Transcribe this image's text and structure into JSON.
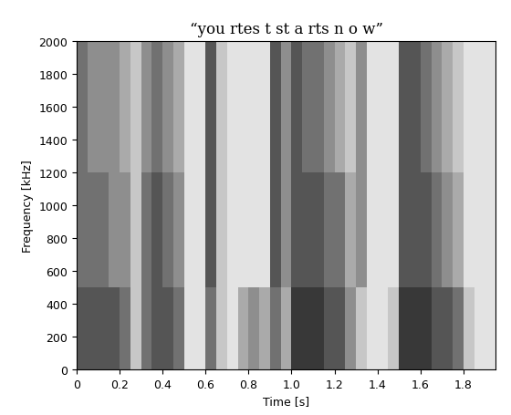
{
  "chart_data": {
    "type": "heatmap",
    "title": "“you rtes t st a rts n o w”",
    "x_label": "Time [s]",
    "y_label": "Frequency [kHz]",
    "color": "gray_r",
    "color_range": [
      0,
      9
    ],
    "x_edges": [
      0,
      0.05,
      0.1,
      0.15,
      0.2,
      0.25,
      0.3,
      0.35,
      0.4,
      0.45,
      0.5,
      0.55,
      0.6,
      0.65,
      0.7,
      0.75,
      0.8,
      0.85,
      0.9,
      0.95,
      1.0,
      1.05,
      1.1,
      1.15,
      1.2,
      1.25,
      1.3,
      1.35,
      1.4,
      1.45,
      1.5,
      1.55,
      1.6,
      1.65,
      1.7,
      1.75,
      1.8,
      1.85,
      1.9,
      1.95
    ],
    "y_edges": [
      0,
      100,
      200,
      300,
      400,
      500,
      600,
      700,
      800,
      900,
      1000,
      1100,
      1200,
      1300,
      1400,
      1500,
      1600,
      1700,
      1800,
      1900,
      2000
    ],
    "cells": [
      [
        6,
        6,
        6,
        6,
        5,
        2,
        5,
        6,
        6,
        5,
        1,
        1,
        5,
        2,
        1,
        3,
        4,
        3,
        5,
        3,
        7,
        7,
        7,
        6,
        6,
        4,
        2,
        1,
        1,
        2,
        7,
        7,
        7,
        6,
        6,
        5,
        2,
        1,
        1
      ],
      [
        6,
        6,
        6,
        6,
        5,
        2,
        5,
        6,
        6,
        5,
        1,
        1,
        5,
        2,
        1,
        3,
        4,
        3,
        5,
        3,
        7,
        7,
        7,
        6,
        6,
        4,
        2,
        1,
        1,
        2,
        7,
        7,
        7,
        6,
        6,
        5,
        2,
        1,
        1
      ],
      [
        6,
        6,
        6,
        6,
        5,
        2,
        5,
        6,
        6,
        5,
        1,
        1,
        5,
        2,
        1,
        3,
        4,
        3,
        5,
        3,
        7,
        7,
        7,
        6,
        6,
        4,
        2,
        1,
        1,
        2,
        7,
        7,
        7,
        6,
        6,
        5,
        2,
        1,
        1
      ],
      [
        6,
        6,
        6,
        6,
        5,
        2,
        5,
        6,
        6,
        5,
        1,
        1,
        5,
        2,
        1,
        3,
        4,
        3,
        5,
        3,
        7,
        7,
        7,
        6,
        6,
        4,
        2,
        1,
        1,
        2,
        7,
        7,
        7,
        6,
        6,
        5,
        2,
        1,
        1
      ],
      [
        6,
        6,
        6,
        6,
        5,
        2,
        5,
        6,
        6,
        5,
        1,
        1,
        5,
        2,
        1,
        3,
        4,
        3,
        5,
        3,
        7,
        7,
        7,
        6,
        6,
        4,
        2,
        1,
        1,
        2,
        7,
        7,
        7,
        6,
        6,
        5,
        2,
        1,
        1
      ],
      [
        5,
        5,
        5,
        4,
        4,
        2,
        5,
        6,
        5,
        4,
        1,
        1,
        6,
        2,
        1,
        1,
        1,
        1,
        6,
        4,
        6,
        6,
        6,
        5,
        5,
        3,
        4,
        1,
        1,
        1,
        6,
        6,
        6,
        5,
        4,
        3,
        1,
        1,
        1
      ],
      [
        5,
        5,
        5,
        4,
        4,
        2,
        5,
        6,
        5,
        4,
        1,
        1,
        6,
        2,
        1,
        1,
        1,
        1,
        6,
        4,
        6,
        6,
        6,
        5,
        5,
        3,
        4,
        1,
        1,
        1,
        6,
        6,
        6,
        5,
        4,
        3,
        1,
        1,
        1
      ],
      [
        5,
        5,
        5,
        4,
        4,
        2,
        5,
        6,
        5,
        4,
        1,
        1,
        6,
        2,
        1,
        1,
        1,
        1,
        6,
        4,
        6,
        6,
        6,
        5,
        5,
        3,
        4,
        1,
        1,
        1,
        6,
        6,
        6,
        5,
        4,
        3,
        1,
        1,
        1
      ],
      [
        5,
        5,
        5,
        4,
        4,
        2,
        5,
        6,
        5,
        4,
        1,
        1,
        6,
        2,
        1,
        1,
        1,
        1,
        6,
        4,
        6,
        6,
        6,
        5,
        5,
        3,
        4,
        1,
        1,
        1,
        6,
        6,
        6,
        5,
        4,
        3,
        1,
        1,
        1
      ],
      [
        5,
        5,
        5,
        4,
        4,
        2,
        5,
        6,
        5,
        4,
        1,
        1,
        6,
        2,
        1,
        1,
        1,
        1,
        6,
        4,
        6,
        6,
        6,
        5,
        5,
        3,
        4,
        1,
        1,
        1,
        6,
        6,
        6,
        5,
        4,
        3,
        1,
        1,
        1
      ],
      [
        5,
        5,
        5,
        4,
        4,
        2,
        5,
        6,
        5,
        4,
        1,
        1,
        6,
        2,
        1,
        1,
        1,
        1,
        6,
        4,
        6,
        6,
        6,
        5,
        5,
        3,
        4,
        1,
        1,
        1,
        6,
        6,
        6,
        5,
        4,
        3,
        1,
        1,
        1
      ],
      [
        5,
        5,
        5,
        4,
        4,
        2,
        5,
        6,
        5,
        4,
        1,
        1,
        6,
        2,
        1,
        1,
        1,
        1,
        6,
        4,
        6,
        6,
        6,
        5,
        5,
        3,
        4,
        1,
        1,
        1,
        6,
        6,
        6,
        5,
        4,
        3,
        1,
        1,
        1
      ],
      [
        5,
        4,
        4,
        4,
        3,
        2,
        4,
        5,
        4,
        3,
        1,
        1,
        6,
        2,
        1,
        1,
        1,
        1,
        6,
        4,
        6,
        5,
        5,
        4,
        3,
        2,
        4,
        1,
        1,
        1,
        6,
        6,
        5,
        4,
        3,
        2,
        1,
        1,
        1
      ],
      [
        5,
        4,
        4,
        4,
        3,
        2,
        4,
        5,
        4,
        3,
        1,
        1,
        6,
        2,
        1,
        1,
        1,
        1,
        6,
        4,
        6,
        5,
        5,
        4,
        3,
        2,
        4,
        1,
        1,
        1,
        6,
        6,
        5,
        4,
        3,
        2,
        1,
        1,
        1
      ],
      [
        5,
        4,
        4,
        4,
        3,
        2,
        4,
        5,
        4,
        3,
        1,
        1,
        6,
        2,
        1,
        1,
        1,
        1,
        6,
        4,
        6,
        5,
        5,
        4,
        3,
        2,
        4,
        1,
        1,
        1,
        6,
        6,
        5,
        4,
        3,
        2,
        1,
        1,
        1
      ],
      [
        5,
        4,
        4,
        4,
        3,
        2,
        4,
        5,
        4,
        3,
        1,
        1,
        6,
        2,
        1,
        1,
        1,
        1,
        6,
        4,
        6,
        5,
        5,
        4,
        3,
        2,
        4,
        1,
        1,
        1,
        6,
        6,
        5,
        4,
        3,
        2,
        1,
        1,
        1
      ],
      [
        5,
        4,
        4,
        4,
        3,
        2,
        4,
        5,
        4,
        3,
        1,
        1,
        6,
        2,
        1,
        1,
        1,
        1,
        6,
        4,
        6,
        5,
        5,
        4,
        3,
        2,
        4,
        1,
        1,
        1,
        6,
        6,
        5,
        4,
        3,
        2,
        1,
        1,
        1
      ],
      [
        5,
        4,
        4,
        4,
        3,
        2,
        4,
        5,
        4,
        3,
        1,
        1,
        6,
        2,
        1,
        1,
        1,
        1,
        6,
        4,
        6,
        5,
        5,
        4,
        3,
        2,
        4,
        1,
        1,
        1,
        6,
        6,
        5,
        4,
        3,
        2,
        1,
        1,
        1
      ],
      [
        5,
        4,
        4,
        4,
        3,
        2,
        4,
        5,
        4,
        3,
        1,
        1,
        6,
        2,
        1,
        1,
        1,
        1,
        6,
        4,
        6,
        5,
        5,
        4,
        3,
        2,
        4,
        1,
        1,
        1,
        6,
        6,
        5,
        4,
        3,
        2,
        1,
        1,
        1
      ],
      [
        5,
        4,
        4,
        4,
        3,
        2,
        4,
        5,
        4,
        3,
        1,
        1,
        6,
        2,
        1,
        1,
        1,
        1,
        6,
        4,
        6,
        5,
        5,
        4,
        3,
        2,
        4,
        1,
        1,
        1,
        6,
        6,
        5,
        4,
        3,
        2,
        1,
        1,
        1
      ]
    ],
    "xlim": [
      0,
      1.95
    ],
    "ylim": [
      0,
      2000
    ],
    "xticks": [
      0,
      0.2,
      0.4,
      0.6,
      0.8,
      1.0,
      1.2,
      1.4,
      1.6,
      1.8
    ],
    "yticks": [
      0,
      200,
      400,
      600,
      800,
      1000,
      1200,
      1400,
      1600,
      1800,
      2000
    ]
  }
}
